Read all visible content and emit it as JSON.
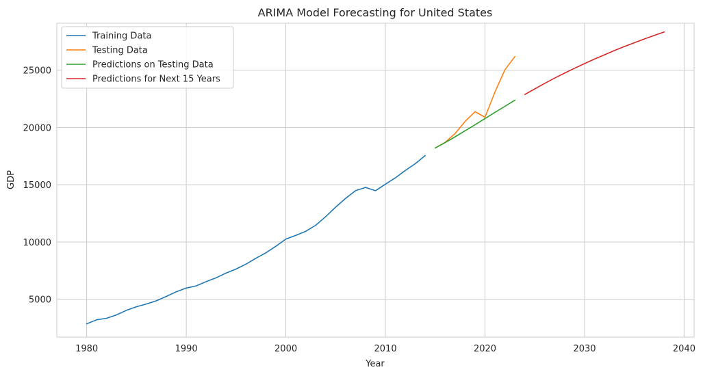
{
  "chart_data": {
    "type": "line",
    "title": "ARIMA Model Forecasting for United States",
    "xlabel": "Year",
    "ylabel": "GDP",
    "xlim": [
      1977,
      2041
    ],
    "ylim": [
      1700,
      29100
    ],
    "x_ticks": [
      1980,
      1990,
      2000,
      2010,
      2020,
      2030,
      2040
    ],
    "y_ticks": [
      5000,
      10000,
      15000,
      20000,
      25000
    ],
    "grid": true,
    "legend_position": "top-left",
    "series": [
      {
        "name": "Training Data",
        "color": "#1f77b4",
        "x": [
          1980,
          1981,
          1982,
          1983,
          1984,
          1985,
          1986,
          1987,
          1988,
          1989,
          1990,
          1991,
          1992,
          1993,
          1994,
          1995,
          1996,
          1997,
          1998,
          1999,
          2000,
          2001,
          2002,
          2003,
          2004,
          2005,
          2006,
          2007,
          2008,
          2009,
          2010,
          2011,
          2012,
          2013,
          2014
        ],
        "y": [
          2860,
          3210,
          3340,
          3640,
          4040,
          4350,
          4590,
          4870,
          5250,
          5660,
          5980,
          6170,
          6540,
          6880,
          7290,
          7640,
          8070,
          8580,
          9060,
          9630,
          10260,
          10580,
          10940,
          11460,
          12220,
          13040,
          13810,
          14480,
          14770,
          14480,
          15050,
          15600,
          16250,
          16840,
          17550
        ]
      },
      {
        "name": "Testing Data",
        "color": "#ff7f0e",
        "x": [
          2015,
          2016,
          2017,
          2018,
          2019,
          2020,
          2021,
          2022,
          2023
        ],
        "y": [
          18210,
          18700,
          19480,
          20530,
          21380,
          20890,
          23100,
          25030,
          26190
        ]
      },
      {
        "name": "Predictions on Testing Data",
        "color": "#2ca02c",
        "x": [
          2015,
          2016,
          2017,
          2018,
          2019,
          2020,
          2021,
          2022,
          2023
        ],
        "y": [
          18210,
          18680,
          19190,
          19710,
          20240,
          20780,
          21320,
          21850,
          22380
        ]
      },
      {
        "name": "Predictions for Next 15 Years",
        "color": "#d62728",
        "x": [
          2024,
          2025,
          2026,
          2027,
          2028,
          2029,
          2030,
          2031,
          2032,
          2033,
          2034,
          2035,
          2036,
          2037,
          2038
        ],
        "y": [
          22880,
          23370,
          23850,
          24310,
          24750,
          25170,
          25580,
          25970,
          26350,
          26720,
          27070,
          27400,
          27730,
          28040,
          28340
        ]
      }
    ]
  }
}
